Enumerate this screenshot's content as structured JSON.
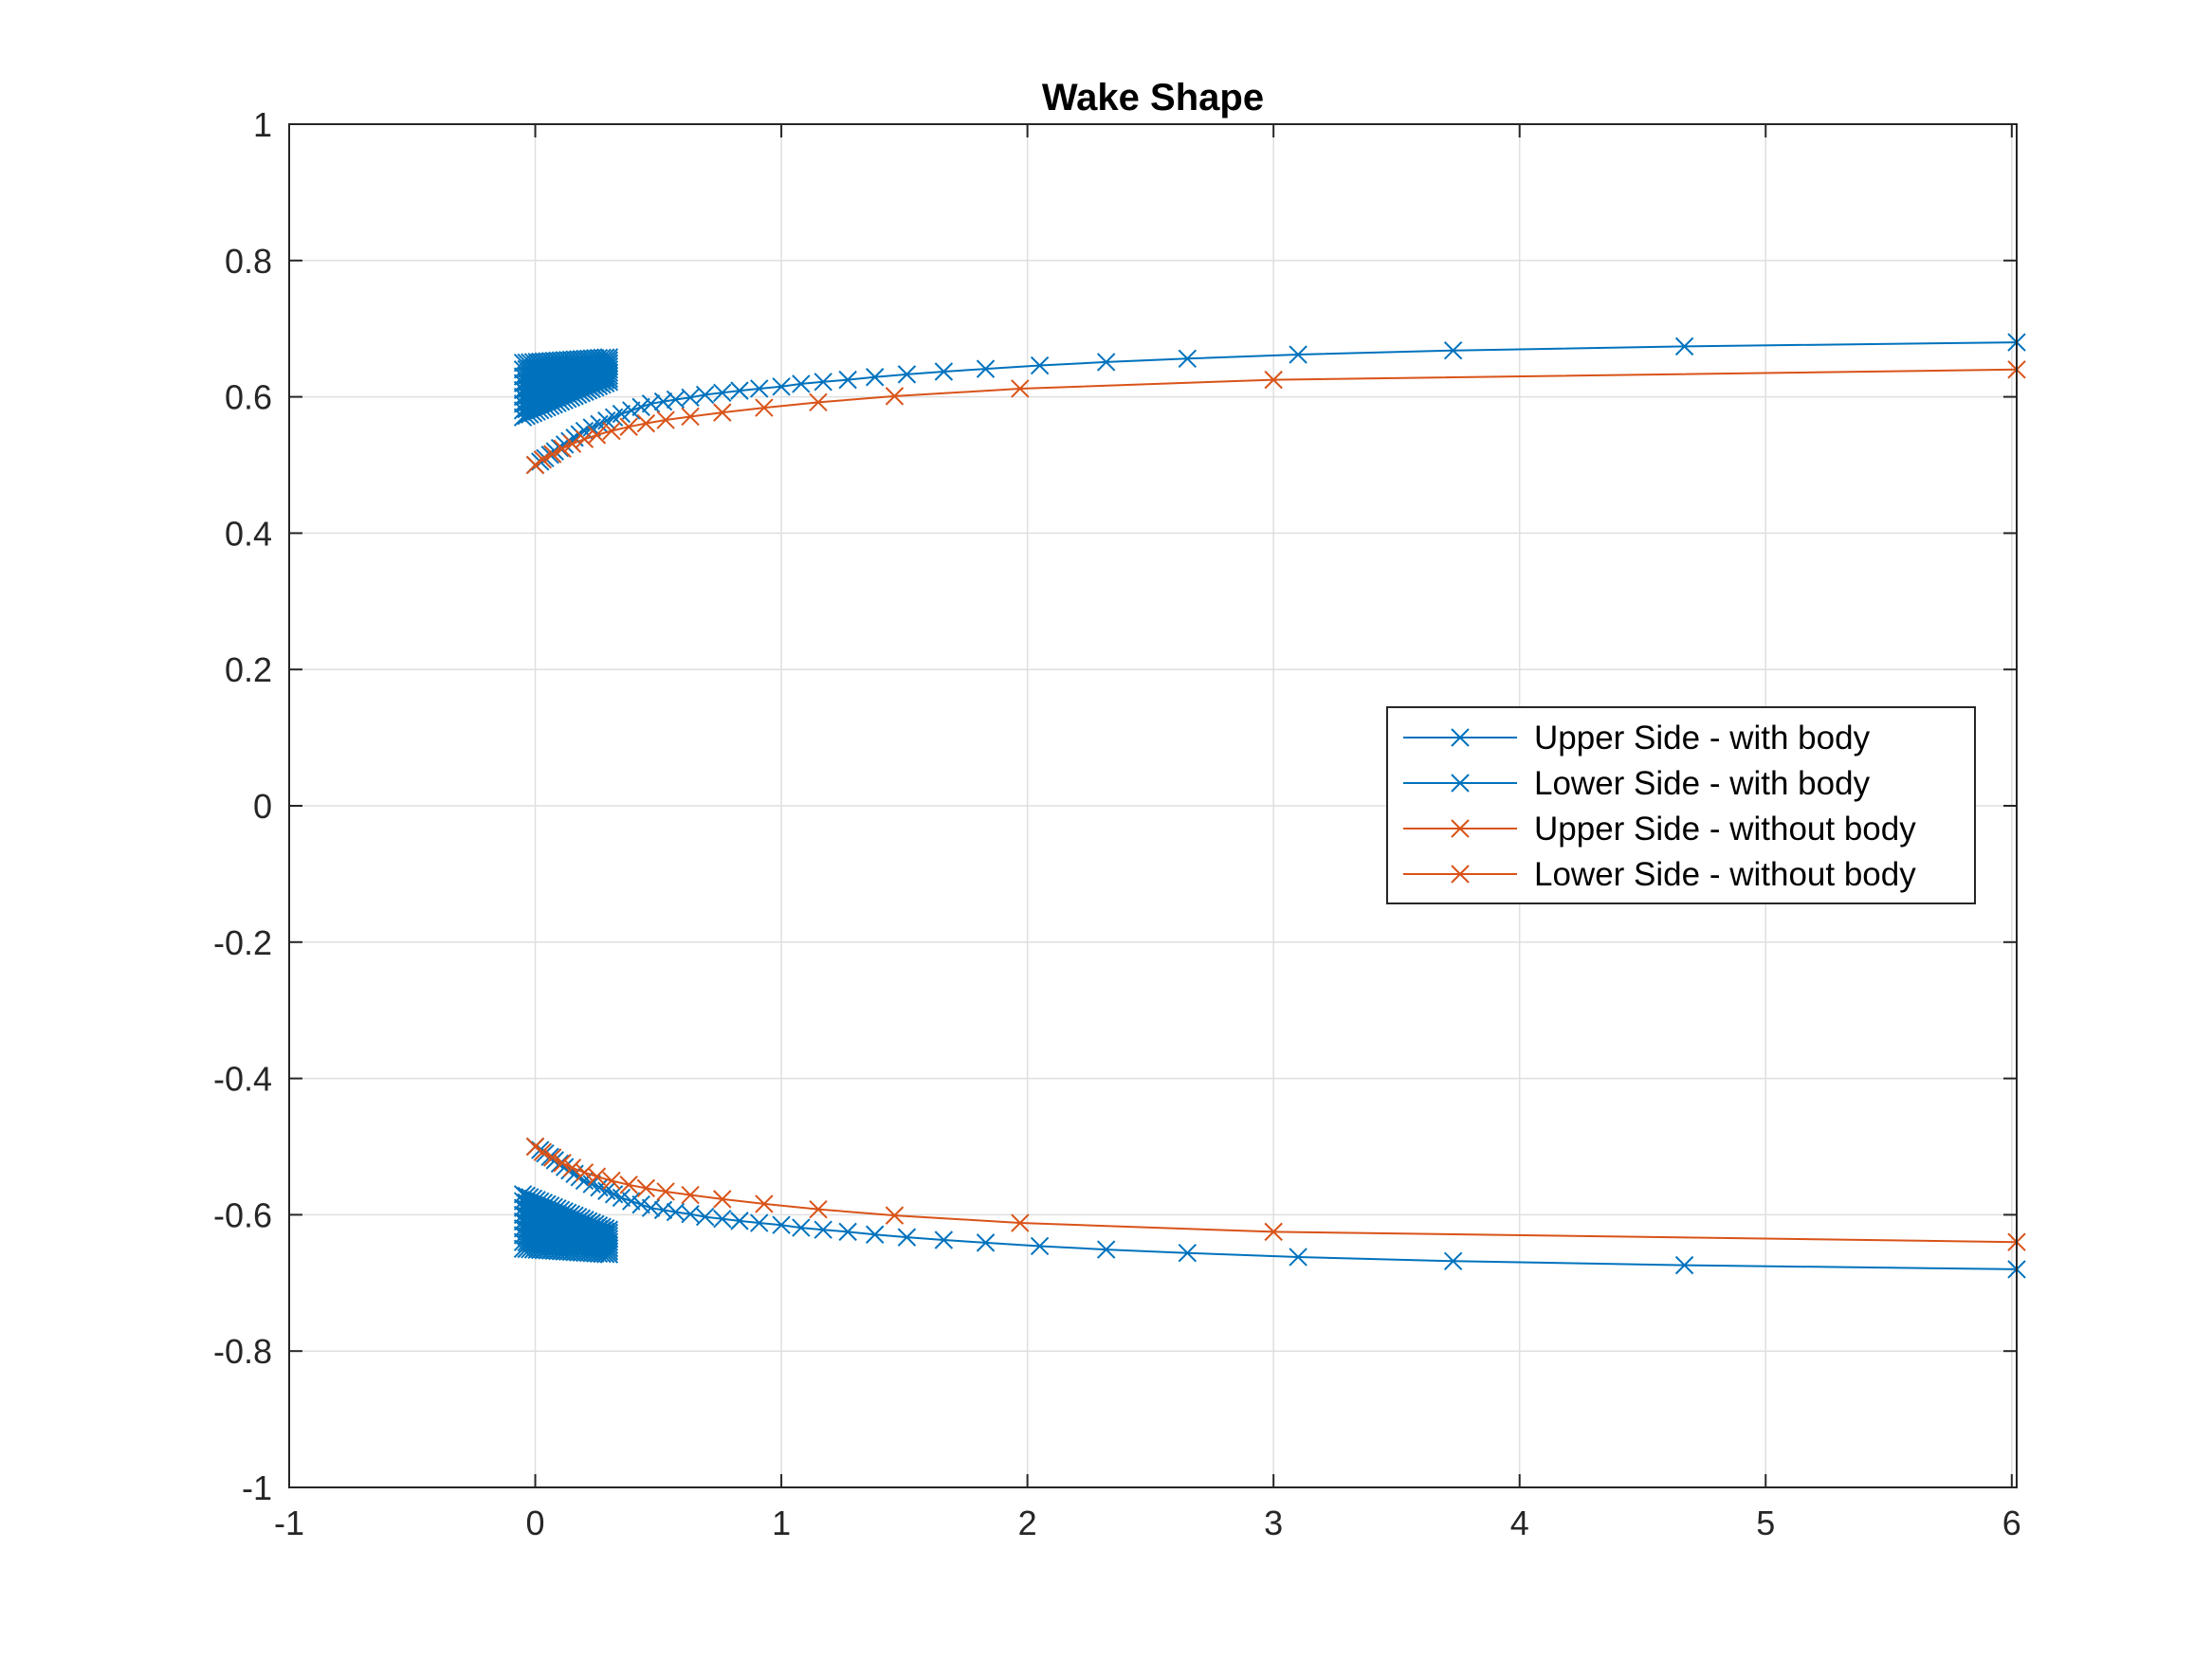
{
  "chart_data": {
    "type": "line",
    "title": "Wake Shape",
    "xlabel": "",
    "ylabel": "",
    "xlim": [
      -1,
      6.02
    ],
    "ylim": [
      -1,
      1
    ],
    "x_ticks": [
      -1,
      0,
      1,
      2,
      3,
      4,
      5,
      6
    ],
    "y_ticks": [
      -1,
      -0.8,
      -0.6,
      -0.4,
      -0.2,
      0,
      0.2,
      0.4,
      0.6,
      0.8,
      1
    ],
    "x_tick_labels": [
      "-1",
      "0",
      "1",
      "2",
      "3",
      "4",
      "5",
      "6"
    ],
    "y_tick_labels": [
      "-1",
      "-0.8",
      "-0.6",
      "-0.4",
      "-0.2",
      "0",
      "0.2",
      "0.4",
      "0.6",
      "0.8",
      "1"
    ],
    "grid": true,
    "legend_position": "right",
    "colors": {
      "with_body": "#0072BD",
      "without_body": "#D95319"
    },
    "series": [
      {
        "name": "Upper Side - with body",
        "color": "#0072BD",
        "marker": "x",
        "x": [
          0.0,
          0.02,
          0.04,
          0.06,
          0.08,
          0.1,
          0.12,
          0.14,
          0.16,
          0.18,
          0.2,
          0.23,
          0.26,
          0.29,
          0.32,
          0.35,
          0.39,
          0.43,
          0.47,
          0.52,
          0.57,
          0.63,
          0.69,
          0.76,
          0.83,
          0.91,
          1.0,
          1.08,
          1.17,
          1.27,
          1.38,
          1.51,
          1.66,
          1.83,
          2.05,
          2.32,
          2.65,
          3.1,
          3.73,
          4.67,
          6.02
        ],
        "y": [
          0.5,
          0.505,
          0.51,
          0.515,
          0.52,
          0.525,
          0.53,
          0.535,
          0.54,
          0.545,
          0.55,
          0.555,
          0.56,
          0.565,
          0.57,
          0.575,
          0.58,
          0.585,
          0.59,
          0.593,
          0.596,
          0.599,
          0.603,
          0.606,
          0.609,
          0.612,
          0.615,
          0.619,
          0.622,
          0.625,
          0.629,
          0.633,
          0.637,
          0.641,
          0.646,
          0.651,
          0.656,
          0.662,
          0.668,
          0.674,
          0.68
        ]
      },
      {
        "name": "Lower Side - with body",
        "color": "#0072BD",
        "marker": "x",
        "x": [
          0.0,
          0.02,
          0.04,
          0.06,
          0.08,
          0.1,
          0.12,
          0.14,
          0.16,
          0.18,
          0.2,
          0.23,
          0.26,
          0.29,
          0.32,
          0.35,
          0.39,
          0.43,
          0.47,
          0.52,
          0.57,
          0.63,
          0.69,
          0.76,
          0.83,
          0.91,
          1.0,
          1.08,
          1.17,
          1.27,
          1.38,
          1.51,
          1.66,
          1.83,
          2.05,
          2.32,
          2.65,
          3.1,
          3.73,
          4.67,
          6.02
        ],
        "y": [
          -0.5,
          -0.505,
          -0.51,
          -0.515,
          -0.52,
          -0.525,
          -0.53,
          -0.535,
          -0.54,
          -0.545,
          -0.55,
          -0.555,
          -0.56,
          -0.565,
          -0.57,
          -0.575,
          -0.58,
          -0.585,
          -0.59,
          -0.593,
          -0.596,
          -0.599,
          -0.603,
          -0.606,
          -0.609,
          -0.612,
          -0.615,
          -0.619,
          -0.622,
          -0.625,
          -0.629,
          -0.633,
          -0.637,
          -0.641,
          -0.646,
          -0.651,
          -0.656,
          -0.662,
          -0.668,
          -0.674,
          -0.68
        ]
      },
      {
        "name": "Upper Side - without body",
        "color": "#D95319",
        "marker": "x",
        "x": [
          0.0,
          0.03,
          0.07,
          0.11,
          0.15,
          0.2,
          0.25,
          0.31,
          0.38,
          0.45,
          0.53,
          0.63,
          0.76,
          0.93,
          1.15,
          1.46,
          1.97,
          3.0,
          6.02
        ],
        "y": [
          0.5,
          0.508,
          0.516,
          0.524,
          0.531,
          0.538,
          0.544,
          0.55,
          0.556,
          0.561,
          0.566,
          0.571,
          0.577,
          0.584,
          0.592,
          0.601,
          0.612,
          0.625,
          0.64
        ]
      },
      {
        "name": "Lower Side - without body",
        "color": "#D95319",
        "marker": "x",
        "x": [
          0.0,
          0.03,
          0.07,
          0.11,
          0.15,
          0.2,
          0.25,
          0.31,
          0.38,
          0.45,
          0.53,
          0.63,
          0.76,
          0.93,
          1.15,
          1.46,
          1.97,
          3.0,
          6.02
        ],
        "y": [
          -0.5,
          -0.508,
          -0.516,
          -0.524,
          -0.531,
          -0.538,
          -0.544,
          -0.55,
          -0.556,
          -0.561,
          -0.566,
          -0.571,
          -0.577,
          -0.584,
          -0.592,
          -0.601,
          -0.612,
          -0.625,
          -0.64
        ]
      }
    ],
    "body_markers": {
      "color": "#0072BD",
      "upper_cluster": {
        "x_range": [
          -0.05,
          0.3
        ],
        "y_range": [
          0.57,
          0.65
        ]
      },
      "lower_cluster": {
        "x_range": [
          -0.05,
          0.3
        ],
        "y_range": [
          -0.65,
          -0.57
        ]
      }
    }
  }
}
